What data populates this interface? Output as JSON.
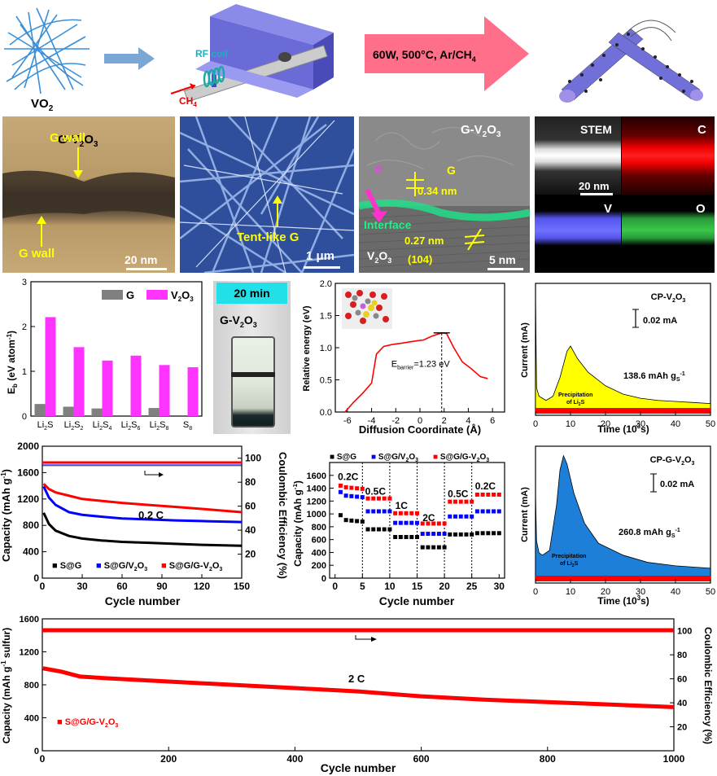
{
  "row1": {
    "vo2_label": "VO",
    "vo2_sub": "2",
    "rf_coil": "RF coil",
    "ch4": "CH",
    "ch4_sub": "4",
    "arrow_text": "60W, 500°C, Ar/CH",
    "arrow_sub": "4"
  },
  "tem": {
    "title": "G-V",
    "title_sub": "2",
    "title_end": "O",
    "title_sub2": "3",
    "gwall_top": "G wall",
    "gwall_bottom": "G wall",
    "scale": "20 nm"
  },
  "sem": {
    "label": "Tent-like G",
    "scale": "1 μm"
  },
  "hrtem": {
    "title": "G-V",
    "title_sub": "2",
    "title_end": "O",
    "title_sub2": "3",
    "electron": "e",
    "electron_sup": "-",
    "g_label": "G",
    "g_spacing": "0.34 nm",
    "interface": "Interface",
    "v_spacing": "0.27 nm",
    "plane": "(104)",
    "v2o3": "V",
    "v2o3_sub": "2",
    "v2o3_end": "O",
    "v2o3_sub2": "3",
    "scale": "5 nm"
  },
  "stem": {
    "stem": "STEM",
    "c": "C",
    "v": "V",
    "o": "O",
    "scale": "20 nm"
  },
  "photo": {
    "time": "20 min",
    "label": "G-V",
    "label_sub": "2",
    "label_end": "O",
    "label_sub2": "3"
  },
  "colors": {
    "magenta": "#ff33ff",
    "grey": "#808080",
    "red": "#ff0000",
    "blue": "#0000ff",
    "black": "#000000",
    "yellow": "#ffff00",
    "blue_fill": "#1e7fd8",
    "cyan_badge": "#22e0e8",
    "arrow_pink": "#ff6f8a"
  },
  "chart_data": [
    {
      "id": "binding",
      "type": "bar",
      "ylabel": "E",
      "ylabel_sub": "b",
      "ylabel_unit": "(eV atom",
      "ylabel_sup": "-1",
      "ylabel_end": ")",
      "ylim": [
        0,
        3
      ],
      "yticks": [
        "0",
        "1",
        "2",
        "3"
      ],
      "categories": [
        {
          "b": "Li",
          "s": "2",
          "e": "S"
        },
        {
          "b": "Li",
          "s": "2",
          "e": "S",
          "s2": "2"
        },
        {
          "b": "Li",
          "s": "2",
          "e": "S",
          "s2": "4"
        },
        {
          "b": "Li",
          "s": "2",
          "e": "S",
          "s2": "6"
        },
        {
          "b": "Li",
          "s": "2",
          "e": "S",
          "s2": "8"
        },
        {
          "b": "S",
          "s": "8",
          "e": ""
        }
      ],
      "legend": [
        {
          "name": "G"
        },
        {
          "name": "V",
          "sub": "2",
          "end": "O",
          "sub2": "3"
        }
      ],
      "series": [
        {
          "name": "G",
          "values": [
            0.27,
            0.21,
            0.17,
            null,
            0.18,
            null
          ]
        },
        {
          "name": "V2O3",
          "values": [
            2.21,
            1.54,
            1.24,
            1.35,
            1.14,
            1.09
          ]
        }
      ]
    },
    {
      "id": "diffusion",
      "type": "line",
      "xlabel": "Diffusion Coordinate (Å)",
      "ylabel": "Relative energy (eV)",
      "xlim": [
        -7,
        7
      ],
      "ylim": [
        0,
        2
      ],
      "xticks": [
        "-6",
        "-4",
        "-2",
        "0",
        "2",
        "4",
        "6"
      ],
      "yticks": [
        "0.0",
        "0.5",
        "1.0",
        "1.5",
        "2.0"
      ],
      "annotation": "E",
      "annotation_sub": "barrier",
      "annotation_end": "=1.23 eV",
      "x": [
        -6.2,
        -5.5,
        -4.7,
        -4.0,
        -3.6,
        -3.0,
        -2.3,
        -1.5,
        -0.5,
        0.3,
        1.0,
        1.8,
        2.2,
        2.8,
        3.5,
        4.2,
        5.0,
        5.6
      ],
      "y": [
        0.0,
        0.15,
        0.3,
        0.45,
        0.9,
        1.02,
        1.05,
        1.07,
        1.1,
        1.12,
        1.18,
        1.23,
        1.22,
        1.0,
        0.78,
        0.68,
        0.55,
        0.52
      ]
    },
    {
      "id": "cp_v2o3",
      "type": "area",
      "title": "CP-V",
      "title_sub": "2",
      "title_end": "O",
      "title_sub2": "3",
      "xlabel": "Time (10",
      "xlabel_sup": "3",
      "xlabel_end": "s)",
      "ylabel": "Current (mA)",
      "scalebar": "0.02 mA",
      "capacity": "138.6 mAh g",
      "capacity_sub": "S",
      "capacity_sup": "-1",
      "precip": "Precipitation",
      "precip2": "of Li",
      "precip2_sub": "2",
      "precip2_end": "S",
      "xlim": [
        0,
        50
      ],
      "xticks": [
        "0",
        "10",
        "20",
        "30",
        "40",
        "50"
      ],
      "x": [
        0,
        0.3,
        1,
        3,
        5,
        7,
        9,
        10,
        12,
        15,
        20,
        25,
        30,
        35,
        40,
        45,
        50
      ],
      "y": [
        0.11,
        0.02,
        0.012,
        0.008,
        0.012,
        0.03,
        0.055,
        0.06,
        0.048,
        0.035,
        0.022,
        0.014,
        0.01,
        0.008,
        0.007,
        0.006,
        0.005
      ]
    },
    {
      "id": "cycling",
      "type": "scatter",
      "xlabel": "Cycle number",
      "ylabel": "Capacity (mAh g",
      "ylabel_sup": "-1",
      "ylabel_end": ")",
      "y2label": "Coulombic Efficiency (%)",
      "annotation": "0.2 C",
      "xlim": [
        0,
        150
      ],
      "ylim": [
        0,
        2000
      ],
      "y2lim": [
        0,
        110
      ],
      "xticks": [
        "0",
        "30",
        "60",
        "90",
        "120",
        "150"
      ],
      "yticks": [
        "0",
        "400",
        "800",
        "1200",
        "1600",
        "2000"
      ],
      "y2ticks": [
        "20",
        "40",
        "60",
        "80",
        "100"
      ],
      "legend": [
        {
          "name": "S@G"
        },
        {
          "name": "S@G/V",
          "sub": "2",
          "end": "O",
          "sub2": "3"
        },
        {
          "name": "S@G/G-V",
          "sub": "2",
          "end": "O",
          "sub2": "3"
        }
      ],
      "x": [
        1,
        5,
        10,
        20,
        30,
        45,
        60,
        80,
        100,
        120,
        150
      ],
      "series": [
        {
          "name": "S@G",
          "values": [
            990,
            820,
            720,
            640,
            600,
            570,
            550,
            535,
            520,
            505,
            490
          ]
        },
        {
          "name": "S@G/V2O3",
          "values": [
            1390,
            1220,
            1110,
            1000,
            960,
            930,
            905,
            890,
            875,
            865,
            850
          ]
        },
        {
          "name": "S@G/G-V2O3",
          "values": [
            1430,
            1350,
            1300,
            1250,
            1200,
            1170,
            1140,
            1110,
            1080,
            1050,
            1000
          ]
        }
      ]
    },
    {
      "id": "rate",
      "type": "scatter",
      "xlabel": "Cycle number",
      "ylabel": "Capacity (mAh g",
      "ylabel_sup": "-1",
      "ylabel_end": ")",
      "xlim": [
        -1,
        31
      ],
      "ylim": [
        0,
        1800
      ],
      "xticks": [
        "0",
        "5",
        "10",
        "15",
        "20",
        "25",
        "30"
      ],
      "yticks": [
        "0",
        "200",
        "400",
        "600",
        "800",
        "1000",
        "1200",
        "1400",
        "1600"
      ],
      "rates": [
        "0.2C",
        "0.5C",
        "1C",
        "2C",
        "0.5C",
        "0.2C"
      ],
      "legend": [
        {
          "name": "S@G"
        },
        {
          "name": "S@G/V",
          "sub": "2",
          "end": "O",
          "sub2": "3"
        },
        {
          "name": "S@G/G-V",
          "sub": "2",
          "end": "O",
          "sub2": "3"
        }
      ],
      "series": [
        {
          "name": "S@G",
          "values": [
            980,
            880,
            760,
            640,
            480,
            680,
            700
          ]
        },
        {
          "name": "S@G/V2O3",
          "values": [
            1340,
            1260,
            1040,
            860,
            690,
            960,
            1040
          ]
        },
        {
          "name": "S@G/G-V2O3",
          "values": [
            1440,
            1390,
            1240,
            1010,
            850,
            1190,
            1300
          ]
        }
      ]
    },
    {
      "id": "cp_g_v2o3",
      "type": "area",
      "title": "CP-G-V",
      "title_sub": "2",
      "title_end": "O",
      "title_sub2": "3",
      "xlabel": "Time (10",
      "xlabel_sup": "3",
      "xlabel_end": "s)",
      "ylabel": "Current (mA)",
      "scalebar": "0.02 mA",
      "capacity": "260.8 mAh g",
      "capacity_sub": "S",
      "capacity_sup": "-1",
      "precip": "Precipitation",
      "precip2": "of Li",
      "precip2_sub": "2",
      "precip2_end": "S",
      "xlim": [
        0,
        50
      ],
      "xticks": [
        "0",
        "10",
        "20",
        "30",
        "40",
        "50"
      ],
      "x": [
        0,
        0.3,
        1,
        2,
        4,
        6,
        7,
        8,
        9,
        11,
        14,
        18,
        25,
        32,
        40,
        50
      ],
      "y": [
        0.07,
        0.03,
        0.02,
        0.018,
        0.022,
        0.06,
        0.09,
        0.102,
        0.095,
        0.07,
        0.045,
        0.028,
        0.018,
        0.012,
        0.009,
        0.007
      ]
    },
    {
      "id": "long_cycling",
      "type": "scatter",
      "xlabel": "Cycle number",
      "ylabel": "Capacity (mAh g",
      "ylabel_sup": "-1",
      "ylabel_end": " sulfur)",
      "y2label": "Coulombic Efficiency (%)",
      "annotation": "2 C",
      "legend": "S@G/G-V",
      "legend_sub": "2",
      "legend_end": "O",
      "legend_sub2": "3",
      "xlim": [
        0,
        1000
      ],
      "ylim": [
        0,
        1600
      ],
      "y2lim": [
        0,
        110
      ],
      "xticks": [
        "0",
        "200",
        "400",
        "600",
        "800",
        "1000"
      ],
      "yticks": [
        "0",
        "400",
        "800",
        "1200",
        "1600"
      ],
      "y2ticks": [
        "20",
        "40",
        "60",
        "80",
        "100"
      ],
      "x": [
        1,
        30,
        60,
        100,
        200,
        300,
        400,
        500,
        600,
        700,
        800,
        900,
        1000
      ],
      "values": [
        1000,
        960,
        900,
        880,
        840,
        800,
        760,
        720,
        660,
        620,
        590,
        560,
        530
      ]
    }
  ]
}
